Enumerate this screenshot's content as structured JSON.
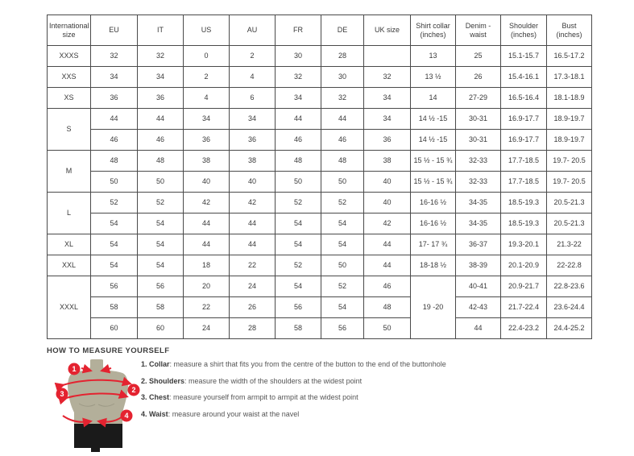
{
  "colors": {
    "accent_red": "#e42330",
    "mannequin_body": "#b3af9a",
    "shorts_black": "#1a1a1a",
    "table_border_dark": "#4a4a4a",
    "table_border_light": "#a8a8a8"
  },
  "table": {
    "headers": [
      "International size",
      "EU",
      "IT",
      "US",
      "AU",
      "FR",
      "DE",
      "UK size",
      "Shirt collar (inches)",
      "Denim - waist",
      "Shoulder (inches)",
      "Bust (inches)"
    ],
    "groups": [
      {
        "label": "XXXS",
        "rows": [
          [
            "32",
            "32",
            "0",
            "2",
            "30",
            "28",
            "",
            "13",
            "25",
            "15.1-15.7",
            "16.5-17.2"
          ]
        ]
      },
      {
        "label": "XXS",
        "rows": [
          [
            "34",
            "34",
            "2",
            "4",
            "32",
            "30",
            "32",
            "13 ½",
            "26",
            "15.4-16.1",
            "17.3-18.1"
          ]
        ]
      },
      {
        "label": "XS",
        "rows": [
          [
            "36",
            "36",
            "4",
            "6",
            "34",
            "32",
            "34",
            "14",
            "27-29",
            "16.5-16.4",
            "18.1-18.9"
          ]
        ]
      },
      {
        "label": "S",
        "rows": [
          [
            "44",
            "44",
            "34",
            "34",
            "44",
            "44",
            "34",
            "14 ½ -15",
            "30-31",
            "16.9-17.7",
            "18.9-19.7"
          ],
          [
            "46",
            "46",
            "36",
            "36",
            "46",
            "46",
            "36",
            "14 ½ -15",
            "30-31",
            "16.9-17.7",
            "18.9-19.7"
          ]
        ]
      },
      {
        "label": "M",
        "rows": [
          [
            "48",
            "48",
            "38",
            "38",
            "48",
            "48",
            "38",
            "15 ½ - 15 ¾",
            "32-33",
            "17.7-18.5",
            "19.7- 20.5"
          ],
          [
            "50",
            "50",
            "40",
            "40",
            "50",
            "50",
            "40",
            "15 ½ - 15 ¾",
            "32-33",
            "17.7-18.5",
            "19.7- 20.5"
          ]
        ]
      },
      {
        "label": "L",
        "rows": [
          [
            "52",
            "52",
            "42",
            "42",
            "52",
            "52",
            "40",
            "16-16 ½",
            "34-35",
            "18.5-19.3",
            "20.5-21.3"
          ],
          [
            "54",
            "54",
            "44",
            "44",
            "54",
            "54",
            "42",
            "16-16 ½",
            "34-35",
            "18.5-19.3",
            "20.5-21.3"
          ]
        ]
      },
      {
        "label": "XL",
        "rows": [
          [
            "54",
            "54",
            "44",
            "44",
            "54",
            "54",
            "44",
            "17- 17 ¾",
            "36-37",
            "19.3-20.1",
            "21.3-22"
          ]
        ]
      },
      {
        "label": "XXL",
        "rows": [
          [
            "54",
            "54",
            "18",
            "22",
            "52",
            "50",
            "44",
            "18-18 ½",
            "38-39",
            "20.1-20.9",
            "22-22.8"
          ]
        ]
      },
      {
        "label": "XXXL",
        "collar": "19 -20",
        "rows": [
          [
            "56",
            "56",
            "20",
            "24",
            "54",
            "52",
            "46",
            "40-41",
            "20.9-21.7",
            "22.8-23.6"
          ],
          [
            "58",
            "58",
            "22",
            "26",
            "56",
            "54",
            "48",
            "42-43",
            "21.7-22.4",
            "23.6-24.4"
          ],
          [
            "60",
            "60",
            "24",
            "28",
            "58",
            "56",
            "50",
            "44",
            "22.4-23.2",
            "24.4-25.2"
          ]
        ]
      }
    ]
  },
  "measure": {
    "title": "HOW TO MEASURE YOURSELF",
    "steps": [
      {
        "lead": "1. Collar",
        "rest": ": measure a shirt that fits you from the centre of the button to the end of the buttonhole"
      },
      {
        "lead": "2. Shoulders",
        "rest": ": measure the width of the shoulders at the widest point"
      },
      {
        "lead": "3. Chest",
        "rest": ": measure yourself from armpit to armpit at the widest point"
      },
      {
        "lead": "4. Waist",
        "rest": ": measure around your waist at the navel"
      }
    ]
  },
  "figure": {
    "badges": [
      "1",
      "2",
      "3",
      "4"
    ]
  }
}
